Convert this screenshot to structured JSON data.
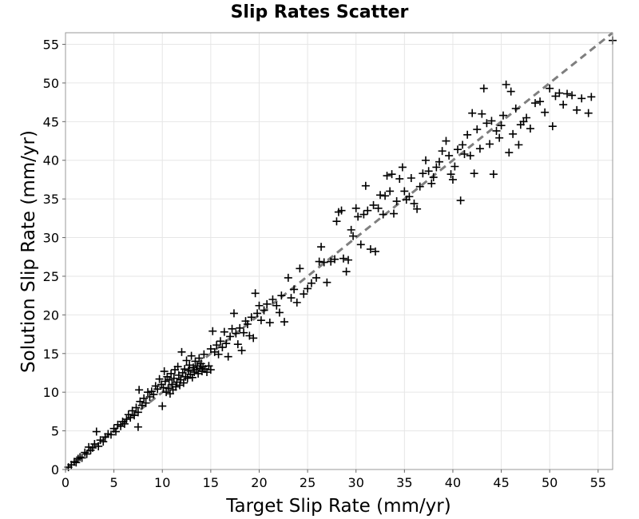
{
  "chart_data": {
    "type": "scatter",
    "title": "Slip Rates Scatter",
    "xlabel": "Target Slip Rate (mm/yr)",
    "ylabel": "Solution Slip Rate (mm/yr)",
    "xlim": [
      0,
      56.5
    ],
    "ylim": [
      0,
      56.5
    ],
    "xticks": [
      0,
      5,
      10,
      15,
      20,
      25,
      30,
      35,
      40,
      45,
      50,
      55
    ],
    "yticks": [
      0,
      5,
      10,
      15,
      20,
      25,
      30,
      35,
      40,
      45,
      50,
      55
    ],
    "grid": true,
    "marker": "plus",
    "marker_color": "#000000",
    "reference_line": {
      "style": "dashed",
      "color": "#7f7f7f",
      "from": [
        0,
        0
      ],
      "to": [
        56.5,
        56.5
      ]
    },
    "series": [
      {
        "points": [
          [
            0.3,
            0.3
          ],
          [
            0.6,
            0.6
          ],
          [
            0.9,
            1.0
          ],
          [
            1.1,
            0.9
          ],
          [
            1.3,
            1.4
          ],
          [
            1.5,
            1.6
          ],
          [
            1.7,
            1.5
          ],
          [
            2.0,
            2.2
          ],
          [
            2.2,
            2.0
          ],
          [
            2.4,
            2.9
          ],
          [
            2.6,
            2.5
          ],
          [
            2.8,
            2.8
          ],
          [
            3.0,
            3.3
          ],
          [
            3.2,
            4.9
          ],
          [
            3.4,
            3.0
          ],
          [
            3.6,
            3.8
          ],
          [
            3.9,
            3.6
          ],
          [
            4.1,
            4.2
          ],
          [
            4.4,
            4.6
          ],
          [
            4.7,
            4.5
          ],
          [
            5.0,
            5.3
          ],
          [
            5.2,
            4.9
          ],
          [
            5.4,
            5.8
          ],
          [
            5.7,
            5.6
          ],
          [
            5.9,
            6.2
          ],
          [
            6.1,
            5.9
          ],
          [
            6.3,
            6.5
          ],
          [
            6.5,
            7.1
          ],
          [
            6.7,
            6.7
          ],
          [
            6.9,
            7.6
          ],
          [
            7.1,
            7.0
          ],
          [
            7.3,
            8.0
          ],
          [
            7.5,
            7.4
          ],
          [
            7.6,
            10.3
          ],
          [
            7.7,
            8.8
          ],
          [
            7.9,
            8.3
          ],
          [
            7.5,
            5.5
          ],
          [
            8.1,
            9.2
          ],
          [
            8.3,
            8.6
          ],
          [
            8.5,
            10.0
          ],
          [
            8.7,
            9.4
          ],
          [
            8.9,
            10.1
          ],
          [
            9.1,
            9.7
          ],
          [
            9.3,
            10.8
          ],
          [
            9.5,
            10.4
          ],
          [
            9.7,
            11.7
          ],
          [
            9.9,
            11.0
          ],
          [
            10.0,
            8.2
          ],
          [
            10.1,
            10.6
          ],
          [
            10.2,
            12.7
          ],
          [
            10.3,
            11.4
          ],
          [
            10.4,
            10.0
          ],
          [
            10.5,
            12.0
          ],
          [
            10.6,
            10.5
          ],
          [
            10.7,
            11.6
          ],
          [
            10.8,
            9.8
          ],
          [
            10.9,
            12.4
          ],
          [
            11.0,
            11.0
          ],
          [
            11.1,
            10.3
          ],
          [
            11.2,
            11.8
          ],
          [
            11.3,
            12.9
          ],
          [
            11.4,
            10.7
          ],
          [
            11.5,
            11.3
          ],
          [
            11.6,
            13.3
          ],
          [
            11.7,
            12.2
          ],
          [
            11.8,
            10.9
          ],
          [
            11.9,
            11.6
          ],
          [
            12.0,
            15.2
          ],
          [
            12.1,
            12.5
          ],
          [
            12.2,
            11.2
          ],
          [
            12.3,
            13.0
          ],
          [
            12.4,
            12.0
          ],
          [
            12.5,
            14.1
          ],
          [
            12.6,
            11.8
          ],
          [
            12.7,
            12.8
          ],
          [
            12.8,
            13.5
          ],
          [
            12.9,
            12.3
          ],
          [
            13.0,
            14.7
          ],
          [
            13.1,
            11.9
          ],
          [
            13.2,
            13.2
          ],
          [
            13.3,
            12.6
          ],
          [
            13.4,
            14.0
          ],
          [
            13.5,
            12.9
          ],
          [
            13.6,
            13.4
          ],
          [
            13.7,
            12.4
          ],
          [
            13.8,
            14.4
          ],
          [
            13.9,
            13.1
          ],
          [
            14.0,
            13.7
          ],
          [
            14.1,
            12.7
          ],
          [
            14.2,
            13.3
          ],
          [
            14.3,
            14.9
          ],
          [
            14.4,
            13.0
          ],
          [
            14.6,
            12.6
          ],
          [
            14.8,
            13.4
          ],
          [
            15.0,
            12.9
          ],
          [
            15.0,
            15.6
          ],
          [
            15.2,
            17.9
          ],
          [
            15.4,
            15.2
          ],
          [
            15.6,
            16.1
          ],
          [
            15.8,
            14.9
          ],
          [
            16.0,
            16.6
          ],
          [
            16.2,
            15.8
          ],
          [
            16.4,
            17.8
          ],
          [
            16.6,
            16.3
          ],
          [
            16.8,
            14.6
          ],
          [
            17.0,
            17.2
          ],
          [
            17.2,
            18.2
          ],
          [
            17.4,
            20.2
          ],
          [
            17.6,
            17.6
          ],
          [
            17.8,
            16.2
          ],
          [
            18.0,
            18.3
          ],
          [
            18.2,
            15.4
          ],
          [
            18.4,
            17.7
          ],
          [
            18.6,
            19.2
          ],
          [
            18.8,
            18.8
          ],
          [
            19.0,
            17.3
          ],
          [
            19.2,
            19.7
          ],
          [
            19.4,
            17.0
          ],
          [
            19.6,
            22.8
          ],
          [
            19.8,
            20.2
          ],
          [
            20.0,
            21.2
          ],
          [
            20.2,
            19.3
          ],
          [
            20.5,
            20.6
          ],
          [
            20.8,
            21.4
          ],
          [
            21.1,
            19.0
          ],
          [
            21.4,
            22.0
          ],
          [
            21.8,
            21.2
          ],
          [
            22.1,
            20.3
          ],
          [
            22.3,
            22.5
          ],
          [
            22.6,
            19.1
          ],
          [
            23.0,
            24.8
          ],
          [
            23.3,
            22.2
          ],
          [
            23.6,
            23.3
          ],
          [
            23.9,
            21.6
          ],
          [
            24.2,
            26.0
          ],
          [
            24.6,
            22.7
          ],
          [
            25.0,
            23.4
          ],
          [
            25.4,
            24.1
          ],
          [
            25.9,
            24.8
          ],
          [
            26.2,
            26.9
          ],
          [
            26.4,
            28.8
          ],
          [
            26.7,
            26.8
          ],
          [
            27.0,
            24.2
          ],
          [
            27.4,
            26.9
          ],
          [
            27.8,
            27.2
          ],
          [
            28.0,
            32.1
          ],
          [
            28.2,
            33.3
          ],
          [
            28.5,
            33.5
          ],
          [
            28.7,
            27.3
          ],
          [
            29.0,
            25.6
          ],
          [
            29.2,
            27.1
          ],
          [
            29.5,
            31.0
          ],
          [
            29.7,
            30.2
          ],
          [
            30.0,
            33.8
          ],
          [
            30.2,
            32.7
          ],
          [
            30.5,
            29.1
          ],
          [
            30.8,
            33.0
          ],
          [
            31.0,
            36.7
          ],
          [
            31.2,
            33.5
          ],
          [
            31.5,
            28.5
          ],
          [
            31.8,
            34.2
          ],
          [
            32.0,
            28.2
          ],
          [
            32.3,
            33.8
          ],
          [
            32.5,
            35.5
          ],
          [
            32.8,
            33.0
          ],
          [
            33.0,
            35.4
          ],
          [
            33.2,
            38.0
          ],
          [
            33.5,
            36.0
          ],
          [
            33.7,
            38.2
          ],
          [
            33.9,
            33.1
          ],
          [
            34.2,
            34.7
          ],
          [
            34.5,
            37.6
          ],
          [
            34.8,
            39.1
          ],
          [
            35.0,
            36.0
          ],
          [
            35.2,
            34.9
          ],
          [
            35.5,
            35.3
          ],
          [
            35.7,
            37.7
          ],
          [
            36.0,
            34.4
          ],
          [
            36.3,
            33.7
          ],
          [
            36.6,
            36.6
          ],
          [
            36.9,
            38.3
          ],
          [
            37.2,
            40.0
          ],
          [
            37.5,
            38.6
          ],
          [
            37.8,
            37.0
          ],
          [
            38.0,
            37.8
          ],
          [
            38.3,
            39.1
          ],
          [
            38.6,
            39.8
          ],
          [
            38.9,
            41.2
          ],
          [
            39.3,
            42.5
          ],
          [
            39.6,
            40.6
          ],
          [
            39.8,
            38.2
          ],
          [
            40.0,
            37.5
          ],
          [
            40.2,
            39.2
          ],
          [
            40.5,
            41.4
          ],
          [
            40.8,
            34.8
          ],
          [
            41.0,
            42.0
          ],
          [
            41.2,
            40.8
          ],
          [
            41.5,
            43.3
          ],
          [
            41.8,
            40.6
          ],
          [
            42.0,
            46.1
          ],
          [
            42.2,
            38.3
          ],
          [
            42.5,
            44.0
          ],
          [
            42.8,
            41.5
          ],
          [
            43.0,
            46.0
          ],
          [
            43.2,
            49.3
          ],
          [
            43.5,
            44.8
          ],
          [
            43.8,
            42.1
          ],
          [
            44.0,
            45.1
          ],
          [
            44.2,
            38.2
          ],
          [
            44.5,
            43.8
          ],
          [
            44.8,
            42.9
          ],
          [
            45.0,
            44.5
          ],
          [
            45.2,
            45.8
          ],
          [
            45.5,
            49.8
          ],
          [
            45.8,
            41.0
          ],
          [
            46.0,
            48.9
          ],
          [
            46.2,
            43.4
          ],
          [
            46.5,
            46.7
          ],
          [
            46.8,
            42.0
          ],
          [
            47.0,
            44.6
          ],
          [
            47.3,
            45.0
          ],
          [
            47.6,
            45.5
          ],
          [
            48.0,
            44.1
          ],
          [
            48.5,
            47.4
          ],
          [
            49.0,
            47.6
          ],
          [
            49.5,
            46.2
          ],
          [
            50.0,
            49.3
          ],
          [
            50.3,
            44.4
          ],
          [
            50.6,
            48.3
          ],
          [
            51.0,
            48.7
          ],
          [
            51.4,
            47.2
          ],
          [
            51.8,
            48.6
          ],
          [
            52.3,
            48.4
          ],
          [
            52.8,
            46.5
          ],
          [
            53.3,
            48.0
          ],
          [
            54.0,
            46.1
          ],
          [
            54.3,
            48.2
          ],
          [
            56.5,
            55.5
          ]
        ]
      }
    ]
  }
}
